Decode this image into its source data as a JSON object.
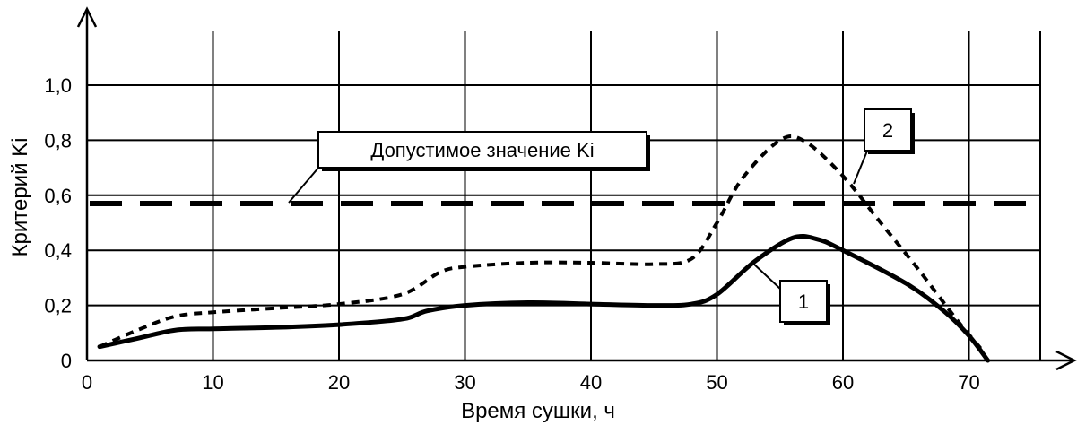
{
  "chart_data": {
    "type": "line",
    "xlabel": "Время сушки, ч",
    "ylabel": "Критерий Ki",
    "xlim": [
      0,
      75
    ],
    "ylim": [
      0,
      1.0
    ],
    "grid": true,
    "x_ticks": [
      {
        "value": 0,
        "label": "0"
      },
      {
        "value": 10,
        "label": "10"
      },
      {
        "value": 20,
        "label": "20"
      },
      {
        "value": 30,
        "label": "30"
      },
      {
        "value": 40,
        "label": "40"
      },
      {
        "value": 50,
        "label": "50"
      },
      {
        "value": 60,
        "label": "60"
      },
      {
        "value": 70,
        "label": "70"
      }
    ],
    "y_ticks": [
      {
        "value": 0,
        "label": "0"
      },
      {
        "value": 0.2,
        "label": "0,2"
      },
      {
        "value": 0.4,
        "label": "0,4"
      },
      {
        "value": 0.6,
        "label": "0,6"
      },
      {
        "value": 0.8,
        "label": "0,8"
      },
      {
        "value": 1.0,
        "label": "1,0"
      }
    ],
    "series": [
      {
        "name": "1",
        "style": "solid",
        "points": [
          [
            1,
            0.05
          ],
          [
            4,
            0.08
          ],
          [
            7,
            0.11
          ],
          [
            10,
            0.115
          ],
          [
            15,
            0.12
          ],
          [
            20,
            0.13
          ],
          [
            25,
            0.15
          ],
          [
            27,
            0.18
          ],
          [
            30,
            0.2
          ],
          [
            35,
            0.21
          ],
          [
            40,
            0.205
          ],
          [
            45,
            0.2
          ],
          [
            48,
            0.205
          ],
          [
            50,
            0.24
          ],
          [
            53,
            0.36
          ],
          [
            56,
            0.445
          ],
          [
            58,
            0.44
          ],
          [
            60,
            0.4
          ],
          [
            65,
            0.28
          ],
          [
            68,
            0.18
          ],
          [
            70,
            0.09
          ],
          [
            71.5,
            0.0
          ]
        ]
      },
      {
        "name": "2",
        "style": "dotted",
        "points": [
          [
            1,
            0.05
          ],
          [
            4,
            0.11
          ],
          [
            7,
            0.16
          ],
          [
            10,
            0.175
          ],
          [
            15,
            0.19
          ],
          [
            20,
            0.205
          ],
          [
            25,
            0.24
          ],
          [
            28,
            0.32
          ],
          [
            30,
            0.34
          ],
          [
            35,
            0.355
          ],
          [
            40,
            0.355
          ],
          [
            45,
            0.35
          ],
          [
            48,
            0.37
          ],
          [
            50,
            0.5
          ],
          [
            52,
            0.66
          ],
          [
            55,
            0.8
          ],
          [
            57,
            0.795
          ],
          [
            60,
            0.67
          ],
          [
            63,
            0.5
          ],
          [
            66,
            0.33
          ],
          [
            69,
            0.15
          ],
          [
            71,
            0.04
          ]
        ]
      }
    ],
    "threshold": {
      "value": 0.57,
      "label": "Допустимое значение Ki",
      "style": "dashed"
    }
  }
}
